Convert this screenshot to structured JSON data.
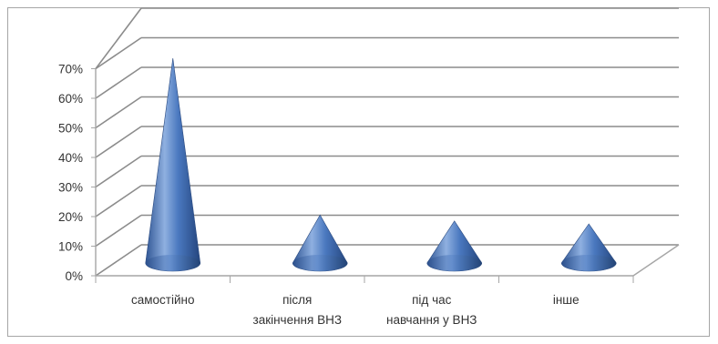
{
  "chart_data": {
    "type": "bar",
    "subtype": "3d-cone",
    "categories": [
      [
        "самостійно"
      ],
      [
        "після",
        "закінчення ВНЗ"
      ],
      [
        "під час",
        "навчання у ВНЗ"
      ],
      [
        "інше"
      ]
    ],
    "values": [
      0.68,
      0.15,
      0.13,
      0.12
    ],
    "yticks": [
      "0%",
      "10%",
      "20%",
      "30%",
      "40%",
      "50%",
      "60%",
      "70%"
    ],
    "ylim": [
      0,
      0.7
    ],
    "grid": true,
    "legend": false,
    "colors": {
      "cone_light": "#7ea2d8",
      "cone_mid": "#4a78bf",
      "cone_dark": "#2c4f8a",
      "grid": "#8c8c8c",
      "axis": "#a6a6a6",
      "frame": "#a6a6a6"
    }
  }
}
